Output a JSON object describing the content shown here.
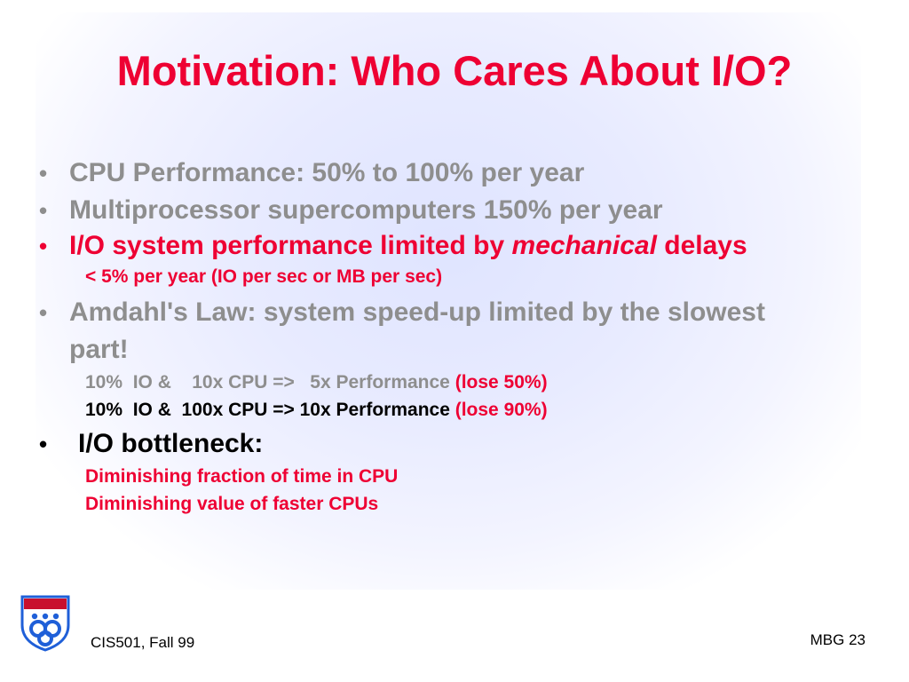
{
  "title": "Motivation: Who Cares About I/O?",
  "bullet_symbol": "•",
  "bullets": {
    "b1": "CPU Performance: 50% to 100% per year",
    "b2": "Multiprocessor supercomputers 150% per year",
    "b3": {
      "text": "I/O system performance limited by ",
      "emph": "mechanical",
      "tail": " delays",
      "sub": "< 5% per year (IO per sec or MB per sec)"
    },
    "b4": {
      "line1": "Amdahl's Law: system speed-up limited by the slowest",
      "line2": "part!",
      "sub1": {
        "text": "10%  IO &    10x CPU =>   5x Performance ",
        "red": "(lose 50%)"
      },
      "sub2": {
        "text": "10%  IO &  100x CPU => 10x Performance ",
        "red": "(lose 90%)"
      }
    },
    "b5": {
      "text": "I/O bottleneck:",
      "sub1": "Diminishing fraction of time in CPU",
      "sub2": "Diminishing value of faster CPUs"
    }
  },
  "footer": {
    "left": "CIS501, Fall 99",
    "right": "MBG  23"
  },
  "colors": {
    "title_red": "#ee0033",
    "gray_text": "#8e8e8e",
    "logo_blue": "#1f5fd8",
    "logo_red": "#c8102e"
  },
  "logo_icon": "university-shield-icon"
}
